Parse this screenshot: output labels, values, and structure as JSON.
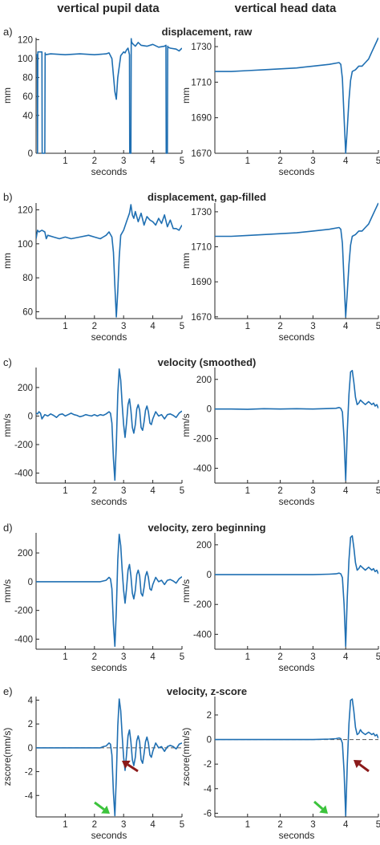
{
  "columns": {
    "left": "vertical pupil data",
    "right": "vertical head data"
  },
  "colors": {
    "line": "#1f6fb2",
    "axis": "#262626",
    "dashed": "#555555",
    "green_arrow": "#3cc33c",
    "red_arrow": "#8b1a1a"
  },
  "rows": [
    {
      "label": "a)",
      "title": "displacement, raw"
    },
    {
      "label": "b)",
      "title": "displacement, gap-filled"
    },
    {
      "label": "c)",
      "title": "velocity (smoothed)"
    },
    {
      "label": "d)",
      "title": "velocity, zero beginning"
    },
    {
      "label": "e)",
      "title": "velocity, z-score"
    }
  ],
  "chart_data": [
    {
      "id": "a-left",
      "type": "line",
      "xlabel": "seconds",
      "ylabel": "mm",
      "xlim": [
        0,
        5
      ],
      "ylim": [
        0,
        122
      ],
      "xticks": [
        1,
        2,
        3,
        4,
        5
      ],
      "yticks": [
        0,
        40,
        60,
        80,
        100,
        120
      ],
      "series": [
        {
          "x": [
            0,
            0.04,
            0.05,
            0.06,
            0.2,
            0.21,
            0.22,
            0.3,
            0.31,
            0.32,
            0.5,
            1.0,
            1.5,
            2.0,
            2.4,
            2.5,
            2.6,
            2.7,
            2.75,
            2.8,
            2.9,
            3.0,
            3.05,
            3.1,
            3.15,
            3.2,
            3.21,
            3.22,
            3.25,
            3.26,
            3.27,
            3.3,
            3.4,
            3.5,
            3.6,
            3.8,
            4.0,
            4.2,
            4.4,
            4.45,
            4.46,
            4.47,
            4.5,
            4.51,
            4.52,
            4.6,
            4.8,
            4.9,
            5.0
          ],
          "y": [
            104,
            104,
            0,
            107,
            107,
            0,
            0,
            0,
            106,
            104,
            105,
            104,
            105,
            104,
            105,
            106,
            100,
            65,
            57,
            80,
            103,
            107,
            106,
            109,
            111,
            104,
            0,
            0,
            0,
            121,
            118,
            116,
            113,
            117,
            114,
            113,
            115,
            112,
            113,
            114,
            0,
            0,
            0,
            113,
            112,
            111,
            110,
            108,
            111
          ]
        }
      ]
    },
    {
      "id": "a-right",
      "type": "line",
      "xlabel": "seconds",
      "ylabel": "mm",
      "xlim": [
        0,
        5
      ],
      "ylim": [
        1670,
        1735
      ],
      "xticks": [
        1,
        2,
        3,
        4,
        5
      ],
      "yticks": [
        1670,
        1690,
        1710,
        1730
      ],
      "series": [
        {
          "x": [
            0,
            0.5,
            1.0,
            1.5,
            2.0,
            2.5,
            3.0,
            3.5,
            3.8,
            3.85,
            3.9,
            3.95,
            4.0,
            4.05,
            4.1,
            4.15,
            4.2,
            4.3,
            4.4,
            4.5,
            4.6,
            4.7,
            4.8,
            4.9,
            5.0
          ],
          "y": [
            1716,
            1716,
            1716.5,
            1717,
            1717.5,
            1718,
            1719,
            1720,
            1721,
            1720,
            1712,
            1690,
            1670,
            1684,
            1700,
            1711,
            1716,
            1717,
            1719,
            1719,
            1721,
            1723,
            1727,
            1731,
            1735
          ]
        }
      ]
    },
    {
      "id": "b-left",
      "type": "line",
      "xlabel": "seconds",
      "ylabel": "mm",
      "xlim": [
        0,
        5
      ],
      "ylim": [
        56,
        124
      ],
      "xticks": [
        1,
        2,
        3,
        4,
        5
      ],
      "yticks": [
        60,
        80,
        100,
        120
      ],
      "series": [
        {
          "x": [
            0,
            0.05,
            0.1,
            0.2,
            0.3,
            0.35,
            0.4,
            0.6,
            0.8,
            1.0,
            1.2,
            1.5,
            1.8,
            2.0,
            2.2,
            2.4,
            2.5,
            2.6,
            2.65,
            2.7,
            2.75,
            2.8,
            2.85,
            2.9,
            3.0,
            3.1,
            3.2,
            3.25,
            3.3,
            3.35,
            3.4,
            3.5,
            3.6,
            3.7,
            3.8,
            3.9,
            4.0,
            4.1,
            4.2,
            4.3,
            4.4,
            4.5,
            4.6,
            4.7,
            4.8,
            4.9,
            5.0
          ],
          "y": [
            103,
            108,
            107,
            108,
            107,
            103,
            105,
            104,
            103,
            104,
            103,
            104,
            105,
            104,
            103,
            105,
            107,
            104,
            95,
            75,
            57,
            72,
            92,
            105,
            108,
            113,
            118,
            123,
            117,
            115,
            119,
            113,
            118,
            111,
            116,
            114,
            113,
            111,
            115,
            112,
            117,
            110,
            114,
            109,
            109,
            108,
            111
          ]
        }
      ]
    },
    {
      "id": "b-right",
      "type": "line",
      "xlabel": "seconds",
      "ylabel": "mm",
      "xlim": [
        0,
        5
      ],
      "ylim": [
        1669,
        1735
      ],
      "xticks": [
        1,
        2,
        3,
        4,
        5
      ],
      "yticks": [
        1670,
        1690,
        1710,
        1730
      ],
      "series": [
        {
          "x": [
            0,
            0.5,
            1.0,
            1.5,
            2.0,
            2.5,
            3.0,
            3.5,
            3.8,
            3.85,
            3.9,
            3.95,
            4.0,
            4.05,
            4.1,
            4.15,
            4.2,
            4.3,
            4.4,
            4.5,
            4.6,
            4.7,
            4.8,
            4.9,
            5.0
          ],
          "y": [
            1716,
            1716,
            1716.5,
            1717,
            1717.5,
            1718,
            1719,
            1720,
            1721,
            1720,
            1712,
            1690,
            1670,
            1684,
            1700,
            1711,
            1716,
            1717,
            1719,
            1719,
            1721,
            1723,
            1727,
            1731,
            1735
          ]
        }
      ]
    },
    {
      "id": "c-left",
      "type": "line",
      "xlabel": "seconds",
      "ylabel": "mm/s",
      "xlim": [
        0,
        5
      ],
      "ylim": [
        -470,
        340
      ],
      "xticks": [
        1,
        2,
        3,
        4,
        5
      ],
      "yticks": [
        -400,
        -200,
        0,
        200
      ],
      "series": [
        {
          "x": [
            0,
            0.05,
            0.1,
            0.15,
            0.2,
            0.3,
            0.4,
            0.5,
            0.6,
            0.7,
            0.8,
            0.9,
            1.0,
            1.1,
            1.2,
            1.3,
            1.4,
            1.5,
            1.6,
            1.7,
            1.8,
            1.9,
            2.0,
            2.1,
            2.2,
            2.3,
            2.4,
            2.5,
            2.55,
            2.6,
            2.65,
            2.7,
            2.75,
            2.8,
            2.85,
            2.9,
            2.95,
            3.0,
            3.05,
            3.1,
            3.15,
            3.2,
            3.25,
            3.3,
            3.35,
            3.4,
            3.45,
            3.5,
            3.55,
            3.6,
            3.65,
            3.7,
            3.75,
            3.8,
            3.85,
            3.9,
            3.95,
            4.0,
            4.1,
            4.2,
            4.3,
            4.4,
            4.5,
            4.6,
            4.7,
            4.8,
            4.9,
            5.0
          ],
          "y": [
            20,
            15,
            30,
            20,
            -20,
            10,
            0,
            15,
            5,
            -10,
            10,
            15,
            0,
            10,
            20,
            10,
            5,
            -5,
            0,
            10,
            5,
            0,
            10,
            0,
            10,
            5,
            15,
            30,
            20,
            -50,
            -300,
            -450,
            -200,
            150,
            330,
            250,
            80,
            -60,
            -150,
            -50,
            80,
            120,
            40,
            -80,
            -120,
            -60,
            50,
            80,
            40,
            -80,
            -100,
            -40,
            40,
            70,
            30,
            -50,
            -60,
            -20,
            30,
            0,
            10,
            -20,
            10,
            15,
            5,
            -10,
            20,
            35
          ]
        }
      ]
    },
    {
      "id": "c-right",
      "type": "line",
      "xlabel": "seconds",
      "ylabel": "mm/s",
      "xlim": [
        0,
        5
      ],
      "ylim": [
        -500,
        280
      ],
      "xticks": [
        1,
        2,
        3,
        4,
        5
      ],
      "yticks": [
        -400,
        -200,
        0,
        200
      ],
      "series": [
        {
          "x": [
            0,
            0.5,
            1.0,
            1.5,
            2.0,
            2.5,
            3.0,
            3.5,
            3.7,
            3.8,
            3.85,
            3.9,
            3.95,
            4.0,
            4.05,
            4.1,
            4.15,
            4.2,
            4.25,
            4.3,
            4.35,
            4.4,
            4.45,
            4.5,
            4.55,
            4.6,
            4.7,
            4.8,
            4.85,
            4.9,
            4.95,
            5.0
          ],
          "y": [
            0,
            0,
            -2,
            2,
            0,
            2,
            0,
            3,
            5,
            10,
            5,
            -20,
            -200,
            -480,
            -150,
            100,
            250,
            260,
            180,
            80,
            30,
            40,
            60,
            50,
            40,
            30,
            50,
            30,
            40,
            20,
            30,
            5
          ]
        }
      ]
    },
    {
      "id": "d-left",
      "type": "line",
      "xlabel": "seconds",
      "ylabel": "mm/s",
      "xlim": [
        0,
        5
      ],
      "ylim": [
        -470,
        340
      ],
      "xticks": [
        1,
        2,
        3,
        4,
        5
      ],
      "yticks": [
        -400,
        -200,
        0,
        200
      ],
      "series": [
        {
          "x": [
            0,
            0.5,
            1.0,
            1.5,
            2.0,
            2.2,
            2.3,
            2.4,
            2.5,
            2.55,
            2.6,
            2.65,
            2.7,
            2.75,
            2.8,
            2.85,
            2.9,
            2.95,
            3.0,
            3.05,
            3.1,
            3.15,
            3.2,
            3.25,
            3.3,
            3.35,
            3.4,
            3.45,
            3.5,
            3.55,
            3.6,
            3.65,
            3.7,
            3.75,
            3.8,
            3.85,
            3.9,
            3.95,
            4.0,
            4.1,
            4.2,
            4.3,
            4.4,
            4.5,
            4.6,
            4.7,
            4.8,
            4.9,
            5.0
          ],
          "y": [
            0,
            0,
            0,
            0,
            0,
            0,
            5,
            10,
            30,
            20,
            -50,
            -300,
            -450,
            -200,
            150,
            330,
            250,
            80,
            -60,
            -150,
            -50,
            80,
            120,
            40,
            -80,
            -120,
            -60,
            50,
            80,
            40,
            -80,
            -100,
            -40,
            40,
            70,
            30,
            -50,
            -60,
            -20,
            30,
            0,
            10,
            -20,
            10,
            15,
            5,
            -10,
            20,
            35
          ]
        }
      ]
    },
    {
      "id": "d-right",
      "type": "line",
      "xlabel": "seconds",
      "ylabel": "mm/s",
      "xlim": [
        0,
        5
      ],
      "ylim": [
        -500,
        280
      ],
      "xticks": [
        1,
        2,
        3,
        4,
        5
      ],
      "yticks": [
        -400,
        -200,
        0,
        200
      ],
      "series": [
        {
          "x": [
            0,
            0.5,
            1.0,
            1.5,
            2.0,
            2.5,
            3.0,
            3.5,
            3.7,
            3.8,
            3.85,
            3.9,
            3.95,
            4.0,
            4.05,
            4.1,
            4.15,
            4.2,
            4.25,
            4.3,
            4.35,
            4.4,
            4.45,
            4.5,
            4.55,
            4.6,
            4.7,
            4.8,
            4.85,
            4.9,
            4.95,
            5.0
          ],
          "y": [
            0,
            0,
            0,
            0,
            0,
            0,
            0,
            3,
            5,
            10,
            5,
            -20,
            -200,
            -480,
            -150,
            100,
            250,
            260,
            180,
            80,
            30,
            40,
            60,
            50,
            40,
            30,
            50,
            30,
            40,
            20,
            30,
            5
          ]
        }
      ]
    },
    {
      "id": "e-left",
      "type": "line",
      "xlabel": "seconds",
      "ylabel": "zscore(mm/s)",
      "xlim": [
        0,
        5
      ],
      "ylim": [
        -5.8,
        4.3
      ],
      "xticks": [
        1,
        2,
        3,
        4,
        5
      ],
      "yticks": [
        -4,
        -2,
        0,
        2,
        4
      ],
      "threshold": 0,
      "series": [
        {
          "x": [
            0,
            0.5,
            1.0,
            1.5,
            2.0,
            2.2,
            2.3,
            2.4,
            2.5,
            2.55,
            2.6,
            2.65,
            2.7,
            2.75,
            2.8,
            2.85,
            2.9,
            2.95,
            3.0,
            3.05,
            3.1,
            3.15,
            3.2,
            3.25,
            3.3,
            3.35,
            3.4,
            3.45,
            3.5,
            3.55,
            3.6,
            3.65,
            3.7,
            3.75,
            3.8,
            3.85,
            3.9,
            3.95,
            4.0,
            4.1,
            4.2,
            4.3,
            4.4,
            4.5,
            4.6,
            4.7,
            4.8,
            4.9,
            5.0
          ],
          "y": [
            0,
            0,
            0,
            0,
            0,
            0,
            0.1,
            0.15,
            0.4,
            0.3,
            -0.6,
            -3.8,
            -5.7,
            -2.5,
            1.8,
            4.1,
            3.1,
            1.0,
            -0.8,
            -1.9,
            -0.6,
            1.0,
            1.5,
            0.5,
            -1.0,
            -1.5,
            -0.8,
            0.6,
            1.0,
            0.5,
            -1.0,
            -1.3,
            -0.5,
            0.5,
            0.9,
            0.4,
            -0.6,
            -0.8,
            -0.3,
            0.4,
            0,
            0.1,
            -0.3,
            0.1,
            0.2,
            0.1,
            -0.1,
            0.3,
            0.4
          ]
        }
      ]
    },
    {
      "id": "e-right",
      "type": "line",
      "xlabel": "seconds",
      "ylabel": "zscore(mm/s)",
      "xlim": [
        0,
        5
      ],
      "ylim": [
        -6.3,
        3.5
      ],
      "xticks": [
        1,
        2,
        3,
        4,
        5
      ],
      "yticks": [
        -6,
        -4,
        -2,
        0,
        2
      ],
      "threshold": 0,
      "series": [
        {
          "x": [
            0,
            0.5,
            1.0,
            1.5,
            2.0,
            2.5,
            3.0,
            3.5,
            3.7,
            3.8,
            3.85,
            3.9,
            3.95,
            4.0,
            4.05,
            4.1,
            4.15,
            4.2,
            4.25,
            4.3,
            4.35,
            4.4,
            4.45,
            4.5,
            4.55,
            4.6,
            4.7,
            4.8,
            4.85,
            4.9,
            4.95,
            5.0
          ],
          "y": [
            0,
            0,
            0,
            0,
            0,
            0,
            0,
            0.04,
            0.07,
            0.13,
            0.07,
            -0.3,
            -2.6,
            -6.2,
            -2.0,
            1.3,
            3.2,
            3.3,
            2.3,
            1.0,
            0.4,
            0.5,
            0.8,
            0.6,
            0.5,
            0.4,
            0.6,
            0.4,
            0.5,
            0.3,
            0.4,
            0.1
          ]
        }
      ]
    }
  ]
}
